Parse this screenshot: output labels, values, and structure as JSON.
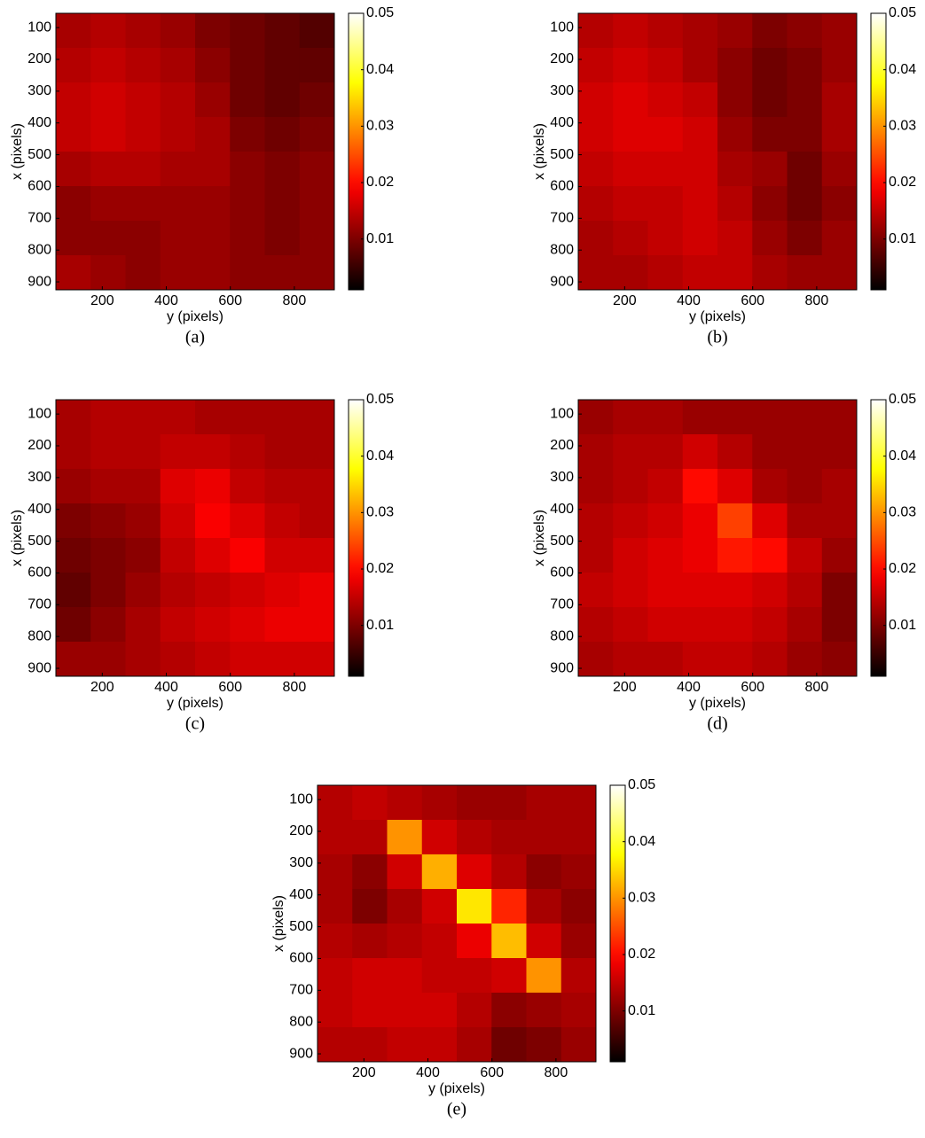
{
  "chart_data": [
    {
      "type": "heatmap",
      "caption": "(a)",
      "xlabel": "y (pixels)",
      "ylabel": "x (pixels)",
      "colormap": "hot",
      "xlim": [
        55,
        925
      ],
      "ylim": [
        55,
        925
      ],
      "xticks": [
        200,
        400,
        600,
        800
      ],
      "yticks": [
        100,
        200,
        300,
        400,
        500,
        600,
        700,
        800,
        900
      ],
      "clim": [
        0.001,
        0.05
      ],
      "cticks": [
        0.01,
        0.02,
        0.03,
        0.04,
        0.05
      ],
      "z": [
        [
          0.013,
          0.014,
          0.013,
          0.012,
          0.01,
          0.009,
          0.008,
          0.007
        ],
        [
          0.014,
          0.015,
          0.014,
          0.013,
          0.011,
          0.009,
          0.008,
          0.008
        ],
        [
          0.015,
          0.016,
          0.015,
          0.014,
          0.012,
          0.009,
          0.008,
          0.009
        ],
        [
          0.015,
          0.016,
          0.015,
          0.014,
          0.013,
          0.01,
          0.009,
          0.01
        ],
        [
          0.013,
          0.014,
          0.014,
          0.013,
          0.013,
          0.011,
          0.01,
          0.011
        ],
        [
          0.011,
          0.012,
          0.012,
          0.012,
          0.012,
          0.011,
          0.01,
          0.011
        ],
        [
          0.011,
          0.011,
          0.011,
          0.012,
          0.012,
          0.011,
          0.01,
          0.011
        ],
        [
          0.013,
          0.012,
          0.011,
          0.012,
          0.012,
          0.011,
          0.011,
          0.011
        ]
      ]
    },
    {
      "type": "heatmap",
      "caption": "(b)",
      "xlabel": "y (pixels)",
      "ylabel": "x (pixels)",
      "colormap": "hot",
      "xlim": [
        55,
        925
      ],
      "ylim": [
        55,
        925
      ],
      "xticks": [
        200,
        400,
        600,
        800
      ],
      "yticks": [
        100,
        200,
        300,
        400,
        500,
        600,
        700,
        800,
        900
      ],
      "clim": [
        0.001,
        0.05
      ],
      "cticks": [
        0.01,
        0.02,
        0.03,
        0.04,
        0.05
      ],
      "z": [
        [
          0.014,
          0.015,
          0.014,
          0.013,
          0.012,
          0.01,
          0.011,
          0.012
        ],
        [
          0.015,
          0.016,
          0.015,
          0.013,
          0.011,
          0.009,
          0.01,
          0.012
        ],
        [
          0.016,
          0.017,
          0.016,
          0.015,
          0.011,
          0.009,
          0.01,
          0.013
        ],
        [
          0.016,
          0.017,
          0.017,
          0.016,
          0.012,
          0.01,
          0.01,
          0.013
        ],
        [
          0.015,
          0.016,
          0.016,
          0.016,
          0.013,
          0.012,
          0.009,
          0.012
        ],
        [
          0.014,
          0.015,
          0.015,
          0.016,
          0.014,
          0.011,
          0.009,
          0.011
        ],
        [
          0.013,
          0.014,
          0.015,
          0.016,
          0.015,
          0.012,
          0.01,
          0.012
        ],
        [
          0.013,
          0.013,
          0.014,
          0.015,
          0.015,
          0.013,
          0.012,
          0.012
        ]
      ]
    },
    {
      "type": "heatmap",
      "caption": "(c)",
      "xlabel": "y (pixels)",
      "ylabel": "x (pixels)",
      "colormap": "hot",
      "xlim": [
        55,
        925
      ],
      "ylim": [
        55,
        925
      ],
      "xticks": [
        200,
        400,
        600,
        800
      ],
      "yticks": [
        100,
        200,
        300,
        400,
        500,
        600,
        700,
        800,
        900
      ],
      "clim": [
        0.001,
        0.05
      ],
      "cticks": [
        0.01,
        0.02,
        0.03,
        0.04,
        0.05
      ],
      "z": [
        [
          0.013,
          0.014,
          0.014,
          0.014,
          0.013,
          0.013,
          0.013,
          0.013
        ],
        [
          0.013,
          0.014,
          0.014,
          0.015,
          0.015,
          0.014,
          0.013,
          0.013
        ],
        [
          0.012,
          0.013,
          0.013,
          0.017,
          0.018,
          0.015,
          0.014,
          0.014
        ],
        [
          0.01,
          0.011,
          0.012,
          0.016,
          0.019,
          0.017,
          0.015,
          0.014
        ],
        [
          0.009,
          0.01,
          0.011,
          0.015,
          0.017,
          0.019,
          0.016,
          0.016
        ],
        [
          0.008,
          0.01,
          0.012,
          0.014,
          0.015,
          0.016,
          0.017,
          0.018
        ],
        [
          0.009,
          0.011,
          0.013,
          0.015,
          0.016,
          0.017,
          0.018,
          0.018
        ],
        [
          0.012,
          0.012,
          0.013,
          0.014,
          0.015,
          0.016,
          0.016,
          0.016
        ]
      ]
    },
    {
      "type": "heatmap",
      "caption": "(d)",
      "xlabel": "y (pixels)",
      "ylabel": "x (pixels)",
      "colormap": "hot",
      "xlim": [
        55,
        925
      ],
      "ylim": [
        55,
        925
      ],
      "xticks": [
        200,
        400,
        600,
        800
      ],
      "yticks": [
        100,
        200,
        300,
        400,
        500,
        600,
        700,
        800,
        900
      ],
      "clim": [
        0.001,
        0.05
      ],
      "cticks": [
        0.01,
        0.02,
        0.03,
        0.04,
        0.05
      ],
      "z": [
        [
          0.012,
          0.013,
          0.013,
          0.012,
          0.012,
          0.012,
          0.012,
          0.012
        ],
        [
          0.013,
          0.014,
          0.014,
          0.016,
          0.014,
          0.012,
          0.012,
          0.012
        ],
        [
          0.013,
          0.014,
          0.015,
          0.02,
          0.017,
          0.013,
          0.012,
          0.013
        ],
        [
          0.014,
          0.015,
          0.016,
          0.018,
          0.024,
          0.017,
          0.013,
          0.013
        ],
        [
          0.014,
          0.016,
          0.017,
          0.018,
          0.021,
          0.02,
          0.015,
          0.012
        ],
        [
          0.015,
          0.016,
          0.017,
          0.017,
          0.017,
          0.016,
          0.014,
          0.01
        ],
        [
          0.014,
          0.015,
          0.016,
          0.016,
          0.016,
          0.015,
          0.013,
          0.01
        ],
        [
          0.013,
          0.014,
          0.014,
          0.015,
          0.015,
          0.014,
          0.012,
          0.011
        ]
      ]
    },
    {
      "type": "heatmap",
      "caption": "(e)",
      "xlabel": "y (pixels)",
      "ylabel": "x (pixels)",
      "colormap": "hot",
      "xlim": [
        55,
        925
      ],
      "ylim": [
        55,
        925
      ],
      "xticks": [
        200,
        400,
        600,
        800
      ],
      "yticks": [
        100,
        200,
        300,
        400,
        500,
        600,
        700,
        800,
        900
      ],
      "clim": [
        0.001,
        0.05
      ],
      "cticks": [
        0.01,
        0.02,
        0.03,
        0.04,
        0.05
      ],
      "z": [
        [
          0.014,
          0.015,
          0.014,
          0.013,
          0.012,
          0.012,
          0.013,
          0.013
        ],
        [
          0.014,
          0.014,
          0.03,
          0.016,
          0.014,
          0.013,
          0.013,
          0.013
        ],
        [
          0.013,
          0.011,
          0.016,
          0.032,
          0.017,
          0.014,
          0.011,
          0.012
        ],
        [
          0.013,
          0.01,
          0.013,
          0.016,
          0.036,
          0.022,
          0.013,
          0.011
        ],
        [
          0.014,
          0.013,
          0.014,
          0.015,
          0.018,
          0.033,
          0.016,
          0.012
        ],
        [
          0.015,
          0.016,
          0.016,
          0.015,
          0.015,
          0.016,
          0.03,
          0.014
        ],
        [
          0.015,
          0.016,
          0.016,
          0.016,
          0.014,
          0.011,
          0.012,
          0.013
        ],
        [
          0.014,
          0.014,
          0.015,
          0.015,
          0.013,
          0.009,
          0.01,
          0.012
        ]
      ]
    }
  ]
}
